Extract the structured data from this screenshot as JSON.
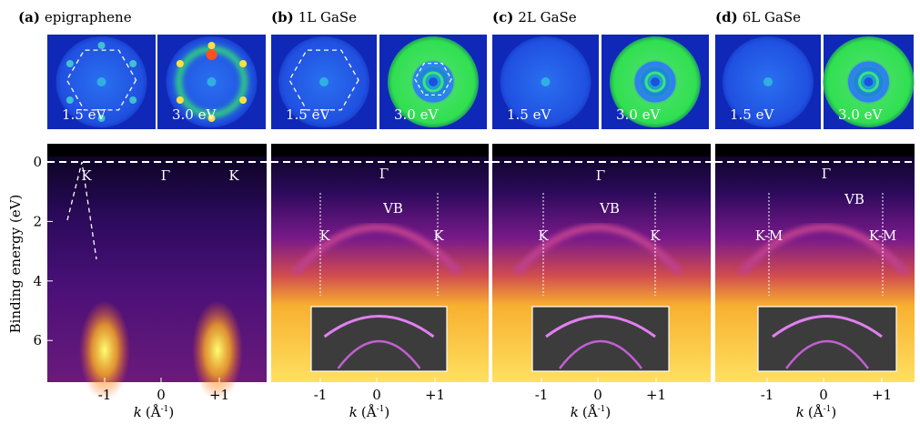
{
  "y_axis": {
    "label": "Binding energy (eV)",
    "ticks": [
      0,
      2,
      4,
      6
    ]
  },
  "x_axis": {
    "symbol": "k",
    "open": "(Å",
    "exponent": "-1",
    "close": ")",
    "ticks": [
      "-1",
      "0",
      "+1"
    ]
  },
  "panels": [
    {
      "tag": "(a)",
      "name": "epigraphene",
      "leed_energies": [
        "1.5 eV",
        "3.0 eV"
      ],
      "annotations": [
        "K",
        "Γ",
        "K"
      ]
    },
    {
      "tag": "(b)",
      "name": "1L GaSe",
      "leed_energies": [
        "1.5 eV",
        "3.0 eV"
      ],
      "annotations": [
        "Γ",
        "VB",
        "K",
        "K"
      ]
    },
    {
      "tag": "(c)",
      "name": "2L GaSe",
      "leed_energies": [
        "1.5 eV",
        "3.0 eV"
      ],
      "annotations": [
        "Γ",
        "VB",
        "K",
        "K"
      ]
    },
    {
      "tag": "(d)",
      "name": "6L GaSe",
      "leed_energies": [
        "1.5 eV",
        "3.0 eV"
      ],
      "annotations": [
        "Γ",
        "VB",
        "K-M",
        "K-M"
      ]
    }
  ]
}
